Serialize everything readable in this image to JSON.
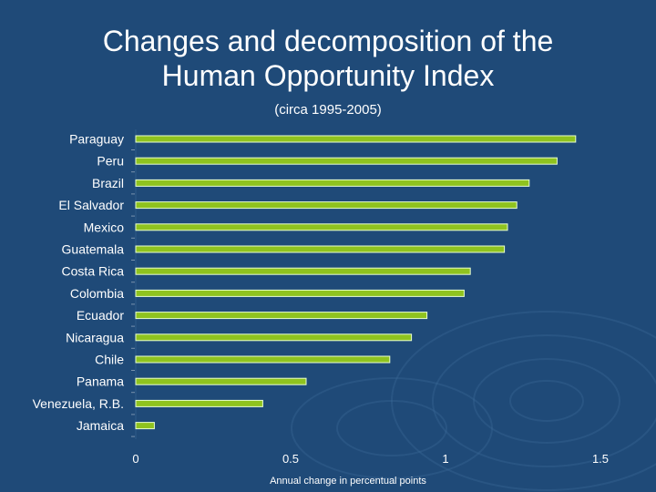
{
  "title_line1": "Changes and decomposition of the",
  "title_line2": "Human Opportunity Index",
  "subtitle": "(circa 1995-2005)",
  "colors": {
    "background": "#1f4a78",
    "bar": "#8fc31f",
    "text": "#ffffff"
  },
  "chart_data": {
    "type": "bar",
    "orientation": "horizontal",
    "title": "Changes and decomposition of the Human Opportunity Index",
    "subtitle": "(circa 1995-2005)",
    "xlabel": "Annual change in percentual points",
    "ylabel": "",
    "xlim": [
      0,
      1.5
    ],
    "xticks": [
      0,
      0.5,
      1,
      1.5
    ],
    "xtick_labels": [
      "0",
      "0.5",
      "1",
      "1.5"
    ],
    "grid": false,
    "categories": [
      "Paraguay",
      "Peru",
      "Brazil",
      "El Salvador",
      "Mexico",
      "Guatemala",
      "Costa Rica",
      "Colombia",
      "Ecuador",
      "Nicaragua",
      "Chile",
      "Panama",
      "Venezuela, R.B.",
      "Jamaica"
    ],
    "values": [
      1.42,
      1.36,
      1.27,
      1.23,
      1.2,
      1.19,
      1.08,
      1.06,
      0.94,
      0.89,
      0.82,
      0.55,
      0.41,
      0.06
    ]
  }
}
